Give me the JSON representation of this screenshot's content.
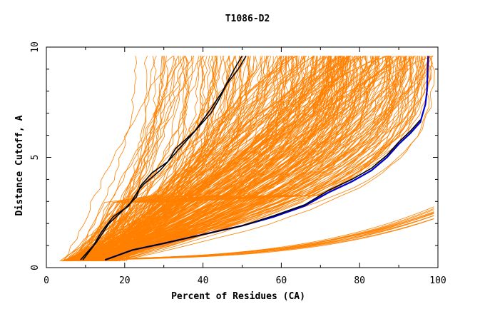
{
  "chart_data": {
    "type": "line",
    "title": "T1086-D2",
    "xlabel": "Percent of Residues (CA)",
    "ylabel": "Distance Cutoff, A",
    "xlim": [
      0,
      100
    ],
    "ylim": [
      0,
      10
    ],
    "x_ticks": [
      "0",
      "20",
      "40",
      "60",
      "80",
      "100"
    ],
    "y_ticks": [
      "0",
      "5",
      "10"
    ],
    "grid": false,
    "background_curves": {
      "color": "#ff8000",
      "count": 300,
      "description_values": {
        "start_x_range": [
          3,
          18
        ],
        "end_x_range": [
          21,
          99
        ],
        "y_range": [
          0.3,
          9.6
        ]
      }
    },
    "series": [
      {
        "color": "#000000",
        "points": [
          [
            8.7,
            0.35
          ],
          [
            12,
            1.0
          ],
          [
            14,
            1.6
          ],
          [
            17,
            2.3
          ],
          [
            21,
            2.8
          ],
          [
            23.5,
            3.5
          ],
          [
            25,
            3.8
          ],
          [
            29,
            4.4
          ],
          [
            32,
            5.0
          ],
          [
            37,
            6.0
          ],
          [
            42,
            7.0
          ],
          [
            44,
            7.6
          ],
          [
            46,
            8.3
          ],
          [
            49,
            9.0
          ],
          [
            51,
            9.6
          ]
        ]
      },
      {
        "color": "#000000",
        "points": [
          [
            9.3,
            0.35
          ],
          [
            13,
            1.2
          ],
          [
            16,
            2.0
          ],
          [
            19,
            2.5
          ],
          [
            23,
            3.2
          ],
          [
            24,
            3.7
          ],
          [
            27,
            4.3
          ],
          [
            31,
            4.8
          ],
          [
            33,
            5.4
          ],
          [
            38,
            6.2
          ],
          [
            42,
            7.2
          ],
          [
            45,
            8.0
          ],
          [
            48,
            9.0
          ],
          [
            50,
            9.6
          ]
        ]
      },
      {
        "color": "#0000cc",
        "points": [
          [
            15,
            0.35
          ],
          [
            22,
            0.8
          ],
          [
            30,
            1.1
          ],
          [
            40,
            1.5
          ],
          [
            50,
            1.9
          ],
          [
            58,
            2.3
          ],
          [
            66,
            2.8
          ],
          [
            72,
            3.4
          ],
          [
            78,
            3.9
          ],
          [
            83,
            4.4
          ],
          [
            87,
            5.0
          ],
          [
            90,
            5.6
          ],
          [
            93,
            6.1
          ],
          [
            95.5,
            6.6
          ],
          [
            96.8,
            7.4
          ],
          [
            97.2,
            8.0
          ],
          [
            97.5,
            9.6
          ]
        ]
      },
      {
        "color": "#000000",
        "points": [
          [
            15,
            0.35
          ],
          [
            22,
            0.8
          ],
          [
            30,
            1.1
          ],
          [
            40,
            1.5
          ],
          [
            50,
            1.9
          ],
          [
            58,
            2.35
          ],
          [
            66,
            2.85
          ],
          [
            72,
            3.5
          ],
          [
            78,
            4.0
          ],
          [
            83,
            4.5
          ],
          [
            87,
            5.1
          ],
          [
            90,
            5.7
          ],
          [
            93,
            6.2
          ],
          [
            95.5,
            6.7
          ]
        ]
      }
    ]
  }
}
